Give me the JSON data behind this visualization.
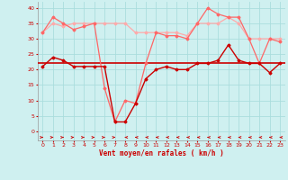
{
  "xlabel": "Vent moyen/en rafales ( km/h )",
  "background_color": "#cff0f0",
  "grid_color": "#aadddd",
  "xlim": [
    -0.5,
    23.5
  ],
  "ylim": [
    -3,
    42
  ],
  "yticks": [
    0,
    5,
    10,
    15,
    20,
    25,
    30,
    35,
    40
  ],
  "xticks": [
    0,
    1,
    2,
    3,
    4,
    5,
    6,
    7,
    8,
    9,
    10,
    11,
    12,
    13,
    14,
    15,
    16,
    17,
    18,
    19,
    20,
    21,
    22,
    23
  ],
  "hours": [
    0,
    1,
    2,
    3,
    4,
    5,
    6,
    7,
    8,
    9,
    10,
    11,
    12,
    13,
    14,
    15,
    16,
    17,
    18,
    19,
    20,
    21,
    22,
    23
  ],
  "vent_moyen": [
    21,
    24,
    23,
    21,
    21,
    21,
    21,
    3,
    3,
    9,
    17,
    20,
    21,
    20,
    20,
    22,
    22,
    23,
    28,
    23,
    22,
    22,
    19,
    22
  ],
  "vent_rafales": [
    32,
    37,
    35,
    33,
    34,
    35,
    14,
    3,
    10,
    9,
    22,
    32,
    31,
    31,
    30,
    35,
    40,
    38,
    37,
    37,
    30,
    22,
    30,
    29
  ],
  "vent_max": [
    32,
    35,
    34,
    35,
    35,
    35,
    35,
    35,
    35,
    32,
    32,
    32,
    32,
    32,
    31,
    35,
    35,
    35,
    37,
    35,
    30,
    30,
    30,
    30
  ],
  "reference_line": 22,
  "line_color_dark": "#cc0000",
  "line_color_light": "#ffaaaa",
  "line_color_medium": "#ff6666",
  "wind_dirs": [
    1,
    1,
    1,
    1,
    1,
    1,
    1,
    1,
    0,
    0,
    0,
    0,
    0,
    0,
    0,
    0,
    0,
    0,
    0,
    0,
    0,
    0,
    0,
    0
  ]
}
